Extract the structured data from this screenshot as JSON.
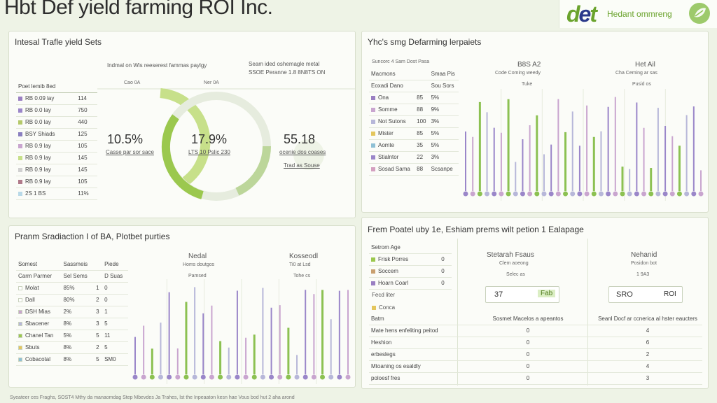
{
  "header": {
    "title": "Hbt Def yield farming ROI Inc.",
    "logo_mark_a": "d",
    "logo_mark_b": "e",
    "logo_mark_c": "t",
    "logo_tagline": "Hedant ommreng"
  },
  "panel1": {
    "title": "Intesal Trafle yield Sets",
    "subtitle_left": "Indmal on Wis reeserest fammas paylgy",
    "subtitle_right_1": "Seam ided oshemagle metal",
    "subtitle_right_2": "SSOE Peranne 1.8 8N8TS ON",
    "table_header": [
      "Poet lemib 8ed",
      ""
    ],
    "rows": [
      {
        "label": "RB 0.09 lay",
        "value": "114",
        "color": "#9a7fc2"
      },
      {
        "label": "RB 0.0 lay",
        "value": "750",
        "color": "#9b86c9"
      },
      {
        "label": "RB 0.0 lay",
        "value": "440",
        "color": "#b5c96a"
      },
      {
        "label": "BSY Shiads",
        "value": "125",
        "color": "#8a7fc0"
      },
      {
        "label": "RB 0.9 lay",
        "value": "105",
        "color": "#c9a5cf"
      },
      {
        "label": "RB 0.9 lay",
        "value": "145",
        "color": "#c7e08a"
      },
      {
        "label": "RB 0.9 lay",
        "value": "145",
        "color": "#d0d0d0"
      },
      {
        "label": "RB 0.9 lay",
        "value": "105",
        "color": "#b07a8a"
      },
      {
        "label": "2S 1 BS",
        "value": "11%",
        "color": "#b9d9e8"
      }
    ],
    "donut_labels_top": [
      "Cao 0A",
      "Ner 0A"
    ],
    "kpi": [
      {
        "value": "10.5%",
        "caption": "Casse par sor sace"
      },
      {
        "value": "17.9%",
        "caption": "LTS 10 Pslic 230"
      },
      {
        "value": "55.18",
        "caption": "ocenie dos coases",
        "sub": "Trad as Souse"
      }
    ]
  },
  "panel2": {
    "title": "Yhc's smg Defarming lerpaiets",
    "caption": "Suncorc 4 Sam Dost Pasa",
    "table_header": [
      "Macmons",
      "Smaa Pis"
    ],
    "sub_header": [
      "Eoxadi Dano",
      "Sou Sors"
    ],
    "rows": [
      {
        "label": "Ona",
        "value": "5%",
        "color": "#9a7fc2"
      },
      {
        "label": "Somme",
        "value": "9%",
        "color": "#c9a5cf"
      },
      {
        "label": "Not Sutons",
        "value": "3%",
        "color": "#b7b7d9"
      },
      {
        "label": "Mister",
        "value": "5%",
        "color": "#e4c65d"
      },
      {
        "label": "Aomte",
        "value": "5%",
        "color": "#8fc0d5"
      },
      {
        "label": "Stialntor",
        "value": "3%",
        "color": "#9a86c9"
      },
      {
        "label": "Sosad Sama",
        "value": "Scsanpe",
        "color": "#d4a0c0"
      }
    ],
    "table_values_mid": [
      "85",
      "88",
      "100",
      "85",
      "35",
      "22",
      "88"
    ],
    "col_a_title": "B8S A2",
    "col_a_sub": "Code Coming weedy",
    "col_a_tag": "Tuke",
    "col_b_title": "Het Ail",
    "col_b_sub": "Cha Ceming ar sas",
    "col_b_tag": "Pusid os"
  },
  "panel3": {
    "title": "Pranm Sradiaction I of BA, Plotbet purties",
    "table_header": [
      "Somest",
      "Sassmeis",
      "Piede"
    ],
    "sub_header": [
      "Carm Parmer",
      "Sel Sems",
      "D Suas"
    ],
    "rows": [
      {
        "label": "Molat",
        "v1": "85%",
        "v2": "1",
        "v3": "0",
        "color": "#ffffff"
      },
      {
        "label": "Dall",
        "v1": "80%",
        "v2": "2",
        "v3": "0",
        "color": "#ffffff"
      },
      {
        "label": "DSH Mias",
        "v1": "2%",
        "v2": "3",
        "v3": "1",
        "color": "#c9a5cf"
      },
      {
        "label": "Sbacener",
        "v1": "8%",
        "v2": "3",
        "v3": "5",
        "color": "#b7b7d9"
      },
      {
        "label": "Chanel Tan",
        "v1": "5%",
        "v2": "5",
        "v3": "11",
        "color": "#9bc84e"
      },
      {
        "label": "Sbuts",
        "v1": "8%",
        "v2": "2",
        "v3": "5",
        "color": "#e4c65d"
      },
      {
        "label": "Cobacotal",
        "v1": "8%",
        "v2": "5",
        "v3": "SM0",
        "color": "#8fc0d5"
      }
    ],
    "col_a_title": "Nedal",
    "col_a_sub": "Homs doutgos",
    "col_a_tag": "Pamsed",
    "col_b_title": "Kosseodl",
    "col_b_sub": "Ti0 at Lsd",
    "col_b_tag": "Tohe cs"
  },
  "panel4": {
    "title": "Frem Poatel uby 1e, Eshiam prems wilt petion 1 Ealapage",
    "legend_title": "Setrom Age",
    "legend": [
      {
        "label": "Frisk Porres",
        "value": "0",
        "color": "#9bc84e"
      },
      {
        "label": "Soccem",
        "value": "0",
        "color": "#c9a070"
      },
      {
        "label": "Hoarn Coarl",
        "value": "0",
        "color": "#9a7fc2"
      }
    ],
    "col_a_title": "Stetarah Fsaus",
    "col_a_sub": "Clem aoeong",
    "col_a_tag": "Selec as",
    "col_b_title": "Nehanid",
    "col_b_sub": "Posidon bot",
    "col_b_tag": "1 9A3",
    "fed_label": "Fecd liter",
    "fed_sub": "Conca",
    "box_a_left": "37",
    "box_a_right": "Fab",
    "box_b_left": "SRO",
    "box_b_right": "ROI",
    "row_head": [
      "Batm",
      "Sosmet Macelos a apeantos",
      "Seanl Docf ar ccnerica al hster eaucters"
    ],
    "rows": [
      {
        "label": "Mate hens enfeliting peitod",
        "a": "0",
        "b": "4"
      },
      {
        "label": "Heshion",
        "a": "0",
        "b": "6"
      },
      {
        "label": "erbeslegs",
        "a": "0",
        "b": "2"
      },
      {
        "label": "Mtoaning os esaldly",
        "a": "0",
        "b": "4"
      },
      {
        "label": "poloesf fres",
        "a": "0",
        "b": "3"
      }
    ]
  },
  "footer": "Syeateer ces Fraghs, SOST4 Mthy da manaomdag Step Mbevdes Ja Trahes, lst the Inpeaaton kesn hae Vous bod hut 2 aha arond",
  "colors": {
    "green": "#8cc152",
    "purple": "#9a86c9",
    "lilac": "#c9a5cf"
  }
}
